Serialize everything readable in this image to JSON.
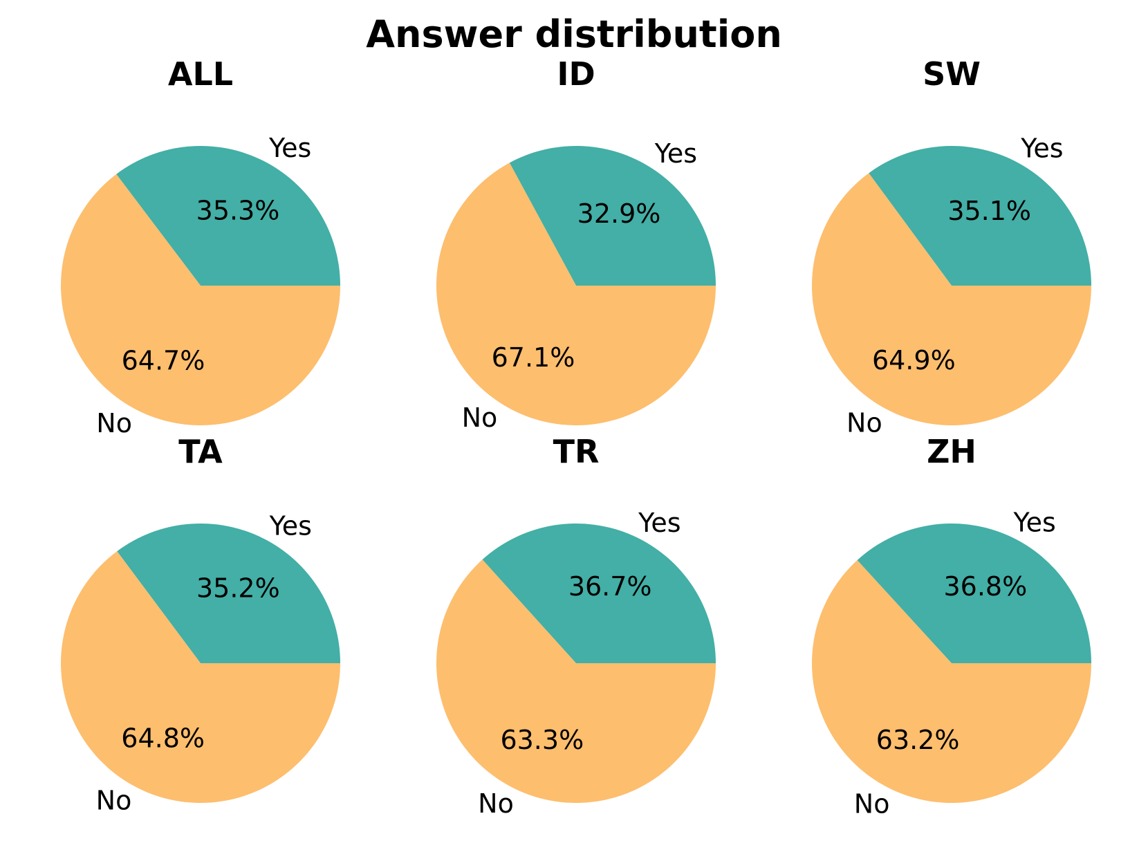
{
  "chart_data": {
    "type": "pie",
    "title": "Answer distribution",
    "colors": {
      "Yes": "#43AFA6",
      "No": "#FDBE6E"
    },
    "labels": [
      "Yes",
      "No"
    ],
    "charts": [
      {
        "title": "ALL",
        "values": [
          35.3,
          64.7
        ],
        "value_labels": [
          "35.3%",
          "64.7%"
        ]
      },
      {
        "title": "ID",
        "values": [
          32.9,
          67.1
        ],
        "value_labels": [
          "32.9%",
          "67.1%"
        ]
      },
      {
        "title": "SW",
        "values": [
          35.1,
          64.9
        ],
        "value_labels": [
          "35.1%",
          "64.9%"
        ]
      },
      {
        "title": "TA",
        "values": [
          35.2,
          64.8
        ],
        "value_labels": [
          "35.2%",
          "64.8%"
        ]
      },
      {
        "title": "TR",
        "values": [
          36.7,
          63.3
        ],
        "value_labels": [
          "36.7%",
          "63.3%"
        ]
      },
      {
        "title": "ZH",
        "values": [
          36.8,
          63.2
        ],
        "value_labels": [
          "36.8%",
          "63.2%"
        ]
      }
    ]
  }
}
